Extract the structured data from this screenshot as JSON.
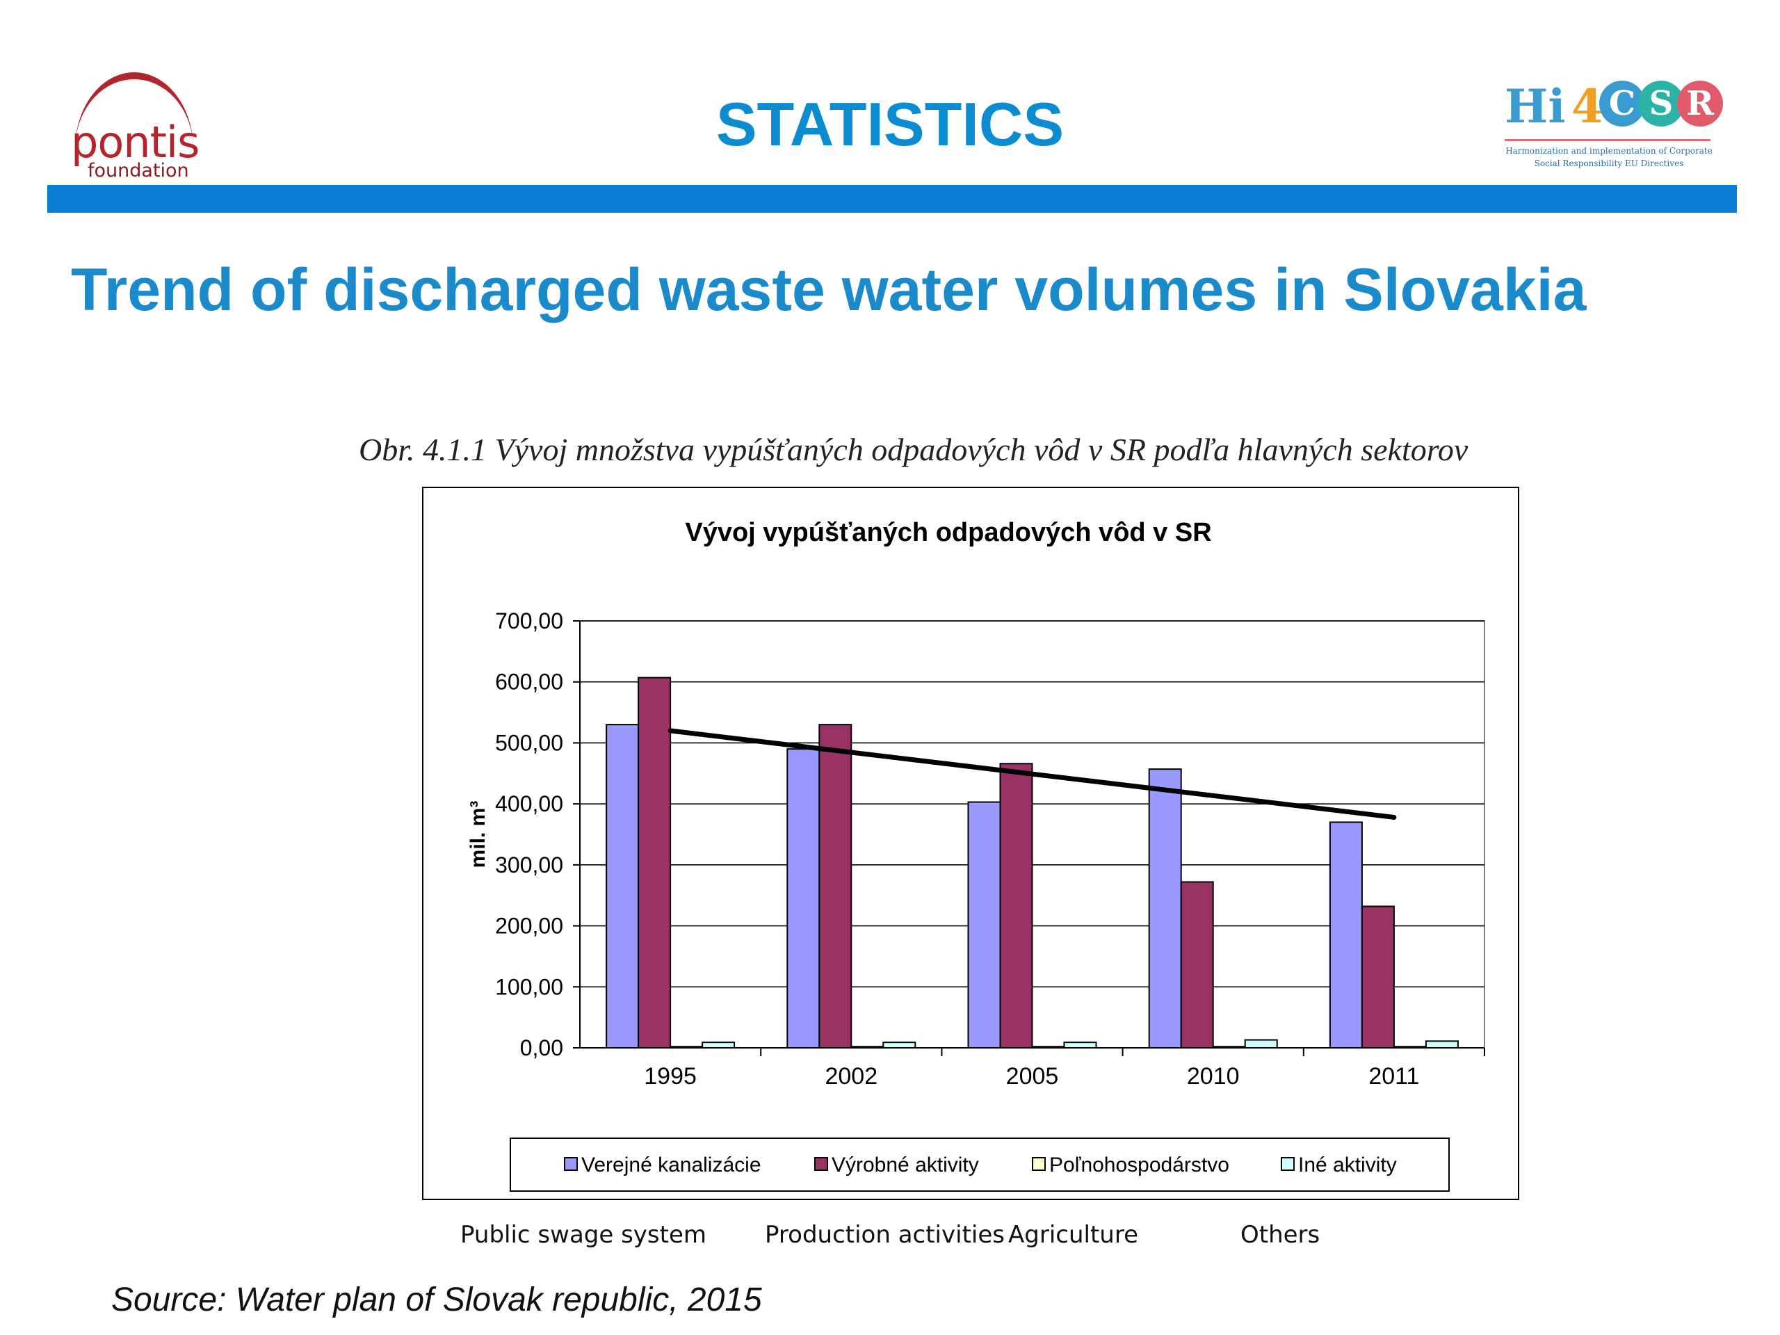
{
  "header": {
    "title": "STATISTICS",
    "left_logo": {
      "name": "pontis",
      "sub": "foundation"
    },
    "right_logo": {
      "prefix": "Hi",
      "digit": "4",
      "letters": [
        "C",
        "S",
        "R"
      ],
      "tagline": "Harmonization and implementation of Corporate Social Responsibility EU Directives"
    }
  },
  "slide_title": "Trend of discharged waste water volumes in Slovakia",
  "caption": "Obr. 4.1.1     Vývoj množstva vypúšťaných odpadových vôd v SR podľa hlavných sektorov",
  "translated_legend": [
    "Public swage system",
    "Production activities",
    "Agriculture",
    "Others"
  ],
  "source": "Source: Water plan of Slovak republic, 2015",
  "colors": {
    "accent": "#0b8bd0",
    "bar": "#0b7fd6",
    "brand_red": "#b3242c"
  },
  "chart_data": {
    "type": "bar",
    "title": "Vývoj vypúšťaných odpadových vôd v SR",
    "ylabel": "mil. m³",
    "xlabel": "",
    "ylim": [
      0,
      700
    ],
    "yticks": [
      "0,00",
      "100,00",
      "200,00",
      "300,00",
      "400,00",
      "500,00",
      "600,00",
      "700,00"
    ],
    "categories": [
      "1995",
      "2002",
      "2005",
      "2010",
      "2011"
    ],
    "series": [
      {
        "name": "Verejné kanalizácie",
        "color": "#9999ff",
        "values": [
          530,
          490,
          403,
          457,
          370
        ]
      },
      {
        "name": "Výrobné aktivity",
        "color": "#993366",
        "values": [
          607,
          530,
          466,
          272,
          232
        ]
      },
      {
        "name": "Poľnohospodárstvo",
        "color": "#ffffcc",
        "values": [
          2,
          2,
          2,
          2,
          2
        ]
      },
      {
        "name": "Iné aktivity",
        "color": "#ccffff",
        "values": [
          9,
          9,
          9,
          13,
          11
        ]
      }
    ],
    "trendline": {
      "from": [
        1995,
        520
      ],
      "to": [
        2011,
        378
      ]
    },
    "grid": true,
    "legend": "bottom"
  }
}
